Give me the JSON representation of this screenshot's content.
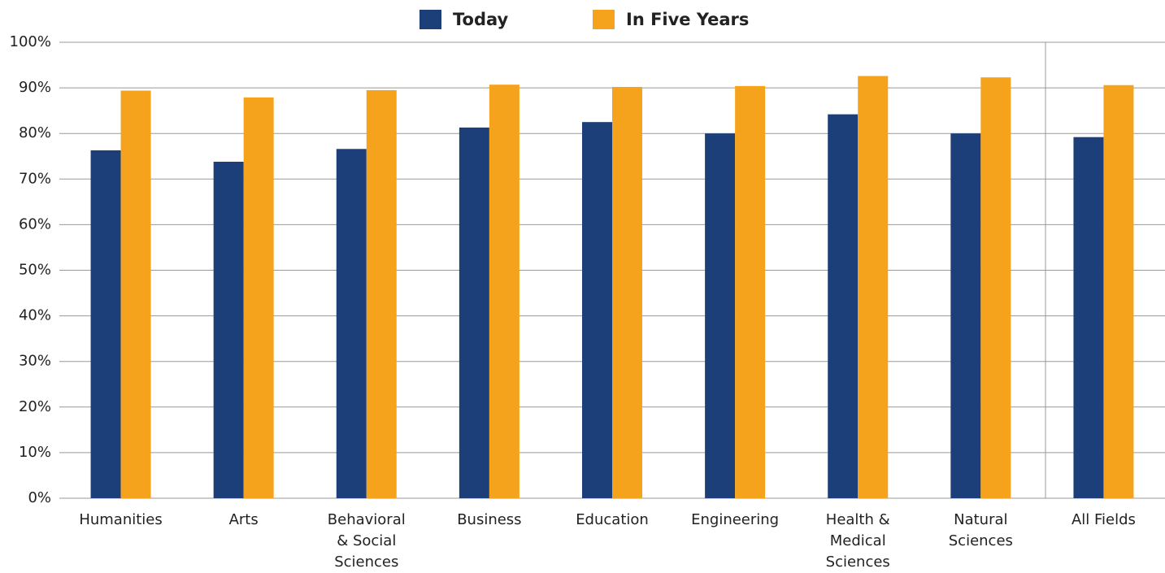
{
  "chart_data": {
    "type": "bar",
    "categories": [
      [
        "Humanities"
      ],
      [
        "Arts"
      ],
      [
        "Behavioral",
        "& Social",
        "Sciences"
      ],
      [
        "Business"
      ],
      [
        "Education"
      ],
      [
        "Engineering"
      ],
      [
        "Health &",
        "Medical",
        "Sciences"
      ],
      [
        "Natural",
        "Sciences"
      ],
      [
        "All Fields"
      ]
    ],
    "series": [
      {
        "name": "Today",
        "color": "#1c3f7a",
        "values": [
          76.3,
          73.8,
          76.6,
          81.3,
          82.5,
          80.0,
          84.2,
          80.0,
          79.2
        ]
      },
      {
        "name": "In Five Years",
        "color": "#f5a31c",
        "values": [
          89.4,
          87.9,
          89.5,
          90.7,
          90.2,
          90.4,
          92.6,
          92.3,
          90.6
        ]
      }
    ],
    "ylim": [
      0,
      100
    ],
    "yticks": [
      {
        "value": 0,
        "label": "0%"
      },
      {
        "value": 10,
        "label": "10%"
      },
      {
        "value": 20,
        "label": "20%"
      },
      {
        "value": 30,
        "label": "30%"
      },
      {
        "value": 40,
        "label": "40%"
      },
      {
        "value": 50,
        "label": "50%"
      },
      {
        "value": 60,
        "label": "60%"
      },
      {
        "value": 70,
        "label": "70%"
      },
      {
        "value": 80,
        "label": "80%"
      },
      {
        "value": 90,
        "label": "90%"
      },
      {
        "value": 100,
        "label": "100%"
      }
    ],
    "grid": true
  }
}
